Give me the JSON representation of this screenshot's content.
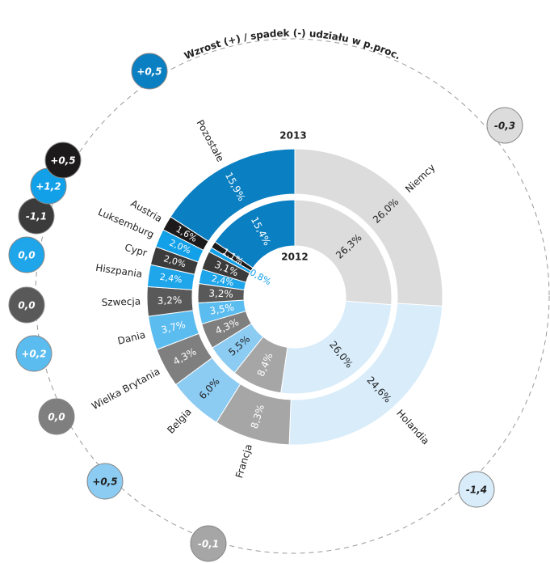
{
  "chart_data": {
    "type": "donut",
    "title": "Wzrost (+) / spadek (-) udziału w p.proc.",
    "categories": [
      "Niemcy",
      "Holandia",
      "Francja",
      "Belgia",
      "Wielka Brytania",
      "Dania",
      "Szwecja",
      "Hiszpania",
      "Cypr",
      "Luksemburg",
      "Austria",
      "Pozostałe"
    ],
    "colors": [
      "#dcdcdc",
      "#d8ecfa",
      "#a6a6a6",
      "#8ccbf2",
      "#7f7f7f",
      "#5bbcf0",
      "#595959",
      "#1ea5ea",
      "#3b3b3b",
      "#12a0e8",
      "#1c1a1a",
      "#0a7fc2"
    ],
    "series": [
      {
        "name": "2013",
        "values": [
          26.0,
          24.6,
          8.3,
          6.0,
          4.3,
          3.7,
          3.2,
          2.4,
          2.0,
          2.0,
          1.6,
          15.9
        ],
        "value_labels": [
          "26,0%",
          "24,6%",
          "8,3%",
          "6,0%",
          "4,3%",
          "3,7%",
          "3,2%",
          "2,4%",
          "2,0%",
          "2,0%",
          "1,6%",
          "15,9%"
        ]
      },
      {
        "name": "2012",
        "values": [
          26.3,
          26.0,
          8.4,
          5.5,
          4.3,
          3.5,
          3.2,
          2.4,
          3.1,
          0.8,
          1.1,
          15.4
        ],
        "value_labels": [
          "26,3%",
          "26,0%",
          "8,4%",
          "5,5%",
          "4,3%",
          "3,5%",
          "3,2%",
          "2,4%",
          "3,1%",
          "0,8%",
          "1,1%",
          "15,4%"
        ]
      }
    ],
    "changes": {
      "values": [
        -0.3,
        -1.4,
        -0.1,
        0.5,
        0.0,
        0.2,
        0.0,
        0.0,
        -1.1,
        1.2,
        0.5,
        0.5
      ],
      "value_labels": [
        "-0,3",
        "-1,4",
        "-0,1",
        "+0,5",
        "0,0",
        "+0,2",
        "0,0",
        "0,0",
        "-1,1",
        "+1,2",
        "+0,5",
        "+0,5"
      ]
    }
  }
}
